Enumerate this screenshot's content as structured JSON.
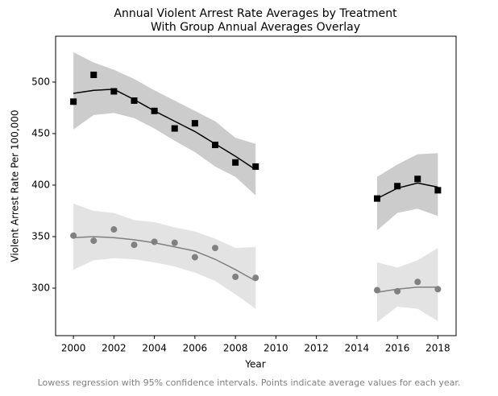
{
  "chart_data": {
    "type": "lowess",
    "title": "Annual Violent Arrest Rate Averages by Treatment",
    "subtitle": "With Group Annual Averages Overlay",
    "x_label": "Year",
    "y_label": "Violent Arrest Rate Per 100,000",
    "caption": "Lowess regression with 95% confidence intervals. Points indicate average values for each year.",
    "xlim": [
      1999.12,
      2018.9
    ],
    "ylim": [
      253.9,
      544.5
    ],
    "xticks": [
      2000,
      2002,
      2004,
      2006,
      2008,
      2010,
      2012,
      2014,
      2016,
      2018
    ],
    "yticks": [
      300,
      350,
      400,
      450,
      500
    ],
    "series": [
      {
        "color": "#000000",
        "band_color": "#cccccc",
        "marker": "square",
        "segments": [
          {
            "x": [
              2000,
              2001,
              2002,
              2003,
              2004,
              2005,
              2006,
              2007,
              2008,
              2009
            ],
            "values": [
              481,
              507,
              491,
              482,
              472,
              455,
              460,
              439,
              422,
              418
            ],
            "fit": [
              489,
              492,
              493,
              483,
              472,
              462,
              452,
              440,
              428,
              415
            ],
            "upper": [
              529,
              519,
              512,
              503,
              492,
              482,
              472,
              462,
              446,
              440
            ],
            "lower": [
              454,
              468,
              470,
              465,
              455,
              443,
              432,
              418,
              408,
              390
            ]
          },
          {
            "x": [
              2015,
              2016,
              2017,
              2018
            ],
            "values": [
              387,
              399,
              406,
              395
            ],
            "fit": [
              387,
              397,
              402,
              398
            ],
            "upper": [
              408,
              420,
              430,
              431
            ],
            "lower": [
              356,
              373,
              377,
              370
            ]
          }
        ]
      },
      {
        "color": "#808080",
        "band_color": "#e3e3e3",
        "marker": "circle",
        "segments": [
          {
            "x": [
              2000,
              2001,
              2002,
              2003,
              2004,
              2005,
              2006,
              2007,
              2008,
              2009
            ],
            "values": [
              351,
              346,
              357,
              342,
              345,
              344,
              330,
              339,
              311,
              310
            ],
            "fit": [
              349,
              350,
              349,
              347,
              344,
              340,
              336,
              328,
              318,
              307
            ],
            "upper": [
              382,
              375,
              373,
              366,
              364,
              359,
              355,
              348,
              339,
              340
            ],
            "lower": [
              318,
              327,
              329,
              328,
              325,
              321,
              315,
              307,
              294,
              280
            ]
          },
          {
            "x": [
              2015,
              2016,
              2017,
              2018
            ],
            "values": [
              298,
              297,
              306,
              299
            ],
            "fit": [
              296,
              299,
              301,
              301
            ],
            "upper": [
              325,
              320,
              327,
              339
            ],
            "lower": [
              267,
              282,
              280,
              268
            ]
          }
        ]
      }
    ]
  }
}
